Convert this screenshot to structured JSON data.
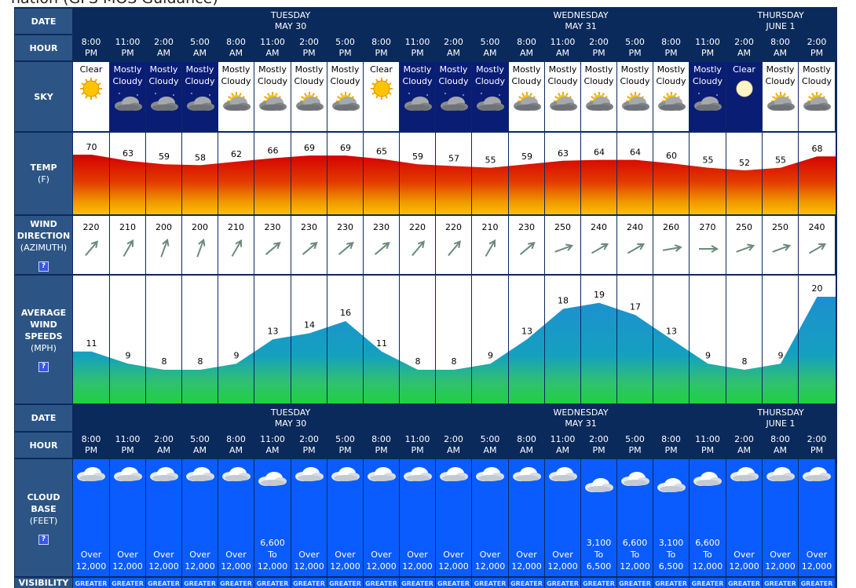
{
  "page_title": "nation (GFS MOS Guidance)",
  "labels": {
    "date": "DATE",
    "hour": "HOUR",
    "sky": "SKY",
    "temp": "TEMP",
    "temp_unit": "(F)",
    "wind_dir_1": "WIND",
    "wind_dir_2": "DIRECTION",
    "wind_dir_unit": "(AZIMUTH)",
    "wind_speed_1": "AVERAGE",
    "wind_speed_2": "WIND",
    "wind_speed_3": "SPEEDS",
    "wind_speed_unit": "(MPH)",
    "cloud_1": "CLOUD",
    "cloud_2": "BASE",
    "cloud_unit": "(FEET)",
    "visibility": "VISIBILITY",
    "help": "?"
  },
  "dates": [
    {
      "day": "",
      "date": ""
    },
    {
      "day": "TUESDAY",
      "date": "MAY 30"
    },
    {
      "day": "WEDNESDAY",
      "date": "MAY 31"
    },
    {
      "day": "THURSDAY",
      "date": "JUNE 1"
    }
  ],
  "hours": [
    {
      "time": "8:00",
      "ampm": "PM"
    },
    {
      "time": "11:00",
      "ampm": "PM"
    },
    {
      "time": "2:00",
      "ampm": "AM"
    },
    {
      "time": "5:00",
      "ampm": "AM"
    },
    {
      "time": "8:00",
      "ampm": "AM"
    },
    {
      "time": "11:00",
      "ampm": "AM"
    },
    {
      "time": "2:00",
      "ampm": "PM"
    },
    {
      "time": "5:00",
      "ampm": "PM"
    },
    {
      "time": "8:00",
      "ampm": "PM"
    },
    {
      "time": "11:00",
      "ampm": "PM"
    },
    {
      "time": "2:00",
      "ampm": "AM"
    },
    {
      "time": "5:00",
      "ampm": "AM"
    },
    {
      "time": "8:00",
      "ampm": "AM"
    },
    {
      "time": "11:00",
      "ampm": "AM"
    },
    {
      "time": "2:00",
      "ampm": "PM"
    },
    {
      "time": "5:00",
      "ampm": "PM"
    },
    {
      "time": "8:00",
      "ampm": "PM"
    },
    {
      "time": "11:00",
      "ampm": "PM"
    },
    {
      "time": "2:00",
      "ampm": "AM"
    },
    {
      "time": "8:00",
      "ampm": "AM"
    },
    {
      "time": "2:00",
      "ampm": "PM"
    }
  ],
  "sky": [
    {
      "l1": "",
      "l2": "Clear",
      "icon": "sun-icon",
      "night": false
    },
    {
      "l1": "Mostly",
      "l2": "Cloudy",
      "icon": "night-cloud-icon",
      "night": true
    },
    {
      "l1": "Mostly",
      "l2": "Cloudy",
      "icon": "night-cloud-icon",
      "night": true
    },
    {
      "l1": "Mostly",
      "l2": "Cloudy",
      "icon": "night-cloud-icon",
      "night": true
    },
    {
      "l1": "Mostly",
      "l2": "Cloudy",
      "icon": "sun-cloud-icon",
      "night": false
    },
    {
      "l1": "Mostly",
      "l2": "Cloudy",
      "icon": "sun-cloud-icon",
      "night": false
    },
    {
      "l1": "Mostly",
      "l2": "Cloudy",
      "icon": "sun-cloud-icon",
      "night": false
    },
    {
      "l1": "Mostly",
      "l2": "Cloudy",
      "icon": "sun-cloud-icon",
      "night": false
    },
    {
      "l1": "",
      "l2": "Clear",
      "icon": "sun-icon",
      "night": false
    },
    {
      "l1": "Mostly",
      "l2": "Cloudy",
      "icon": "night-cloud-icon",
      "night": true
    },
    {
      "l1": "Mostly",
      "l2": "Cloudy",
      "icon": "night-cloud-icon",
      "night": true
    },
    {
      "l1": "Mostly",
      "l2": "Cloudy",
      "icon": "night-cloud-icon",
      "night": true
    },
    {
      "l1": "Mostly",
      "l2": "Cloudy",
      "icon": "sun-cloud-icon",
      "night": false
    },
    {
      "l1": "Mostly",
      "l2": "Cloudy",
      "icon": "sun-cloud-icon",
      "night": false
    },
    {
      "l1": "Mostly",
      "l2": "Cloudy",
      "icon": "sun-cloud-icon",
      "night": false
    },
    {
      "l1": "Mostly",
      "l2": "Cloudy",
      "icon": "sun-cloud-icon",
      "night": false
    },
    {
      "l1": "Mostly",
      "l2": "Cloudy",
      "icon": "sun-cloud-icon",
      "night": false
    },
    {
      "l1": "Mostly",
      "l2": "Cloudy",
      "icon": "night-cloud-icon",
      "night": true
    },
    {
      "l1": "",
      "l2": "Clear",
      "icon": "moon-icon",
      "night": true
    },
    {
      "l1": "Mostly",
      "l2": "Cloudy",
      "icon": "sun-cloud-icon",
      "night": false
    },
    {
      "l1": "Mostly",
      "l2": "Cloudy",
      "icon": "sun-cloud-icon",
      "night": false
    }
  ],
  "temps": [
    "70",
    "63",
    "59",
    "58",
    "62",
    "66",
    "69",
    "69",
    "65",
    "59",
    "57",
    "55",
    "59",
    "63",
    "64",
    "64",
    "60",
    "55",
    "52",
    "55",
    "68"
  ],
  "wind_dirs": [
    "220",
    "210",
    "200",
    "200",
    "210",
    "230",
    "230",
    "230",
    "230",
    "220",
    "220",
    "210",
    "230",
    "250",
    "240",
    "240",
    "260",
    "270",
    "250",
    "250",
    "240"
  ],
  "wind_speeds": [
    "11",
    "9",
    "8",
    "8",
    "9",
    "13",
    "14",
    "16",
    "11",
    "8",
    "8",
    "9",
    "13",
    "18",
    "19",
    "17",
    "13",
    "9",
    "8",
    "9",
    "20"
  ],
  "cloud_base": [
    {
      "l1": "",
      "l2": "Over",
      "l3": "12,000"
    },
    {
      "l1": "",
      "l2": "Over",
      "l3": "12,000"
    },
    {
      "l1": "",
      "l2": "Over",
      "l3": "12,000"
    },
    {
      "l1": "",
      "l2": "Over",
      "l3": "12,000"
    },
    {
      "l1": "",
      "l2": "Over",
      "l3": "12,000"
    },
    {
      "l1": "6,600",
      "l2": "To",
      "l3": "12,000"
    },
    {
      "l1": "",
      "l2": "Over",
      "l3": "12,000"
    },
    {
      "l1": "",
      "l2": "Over",
      "l3": "12,000"
    },
    {
      "l1": "",
      "l2": "Over",
      "l3": "12,000"
    },
    {
      "l1": "",
      "l2": "Over",
      "l3": "12,000"
    },
    {
      "l1": "",
      "l2": "Over",
      "l3": "12,000"
    },
    {
      "l1": "",
      "l2": "Over",
      "l3": "12,000"
    },
    {
      "l1": "",
      "l2": "Over",
      "l3": "12,000"
    },
    {
      "l1": "",
      "l2": "Over",
      "l3": "12,000"
    },
    {
      "l1": "3,100",
      "l2": "To",
      "l3": "6,500"
    },
    {
      "l1": "6,600",
      "l2": "To",
      "l3": "12,000"
    },
    {
      "l1": "3,100",
      "l2": "To",
      "l3": "6,500"
    },
    {
      "l1": "6,600",
      "l2": "To",
      "l3": "12,000"
    },
    {
      "l1": "",
      "l2": "Over",
      "l3": "12,000"
    },
    {
      "l1": "",
      "l2": "Over",
      "l3": "12,000"
    },
    {
      "l1": "",
      "l2": "Over",
      "l3": "12,000"
    }
  ],
  "visibility_text": "GREATER",
  "colors": {
    "header": "#0b2a5c",
    "label": "#2c5585",
    "night_sky": "#0a1d75",
    "cloud_base": "#0a5cff",
    "wind_fill": "#2a9fd0"
  }
}
